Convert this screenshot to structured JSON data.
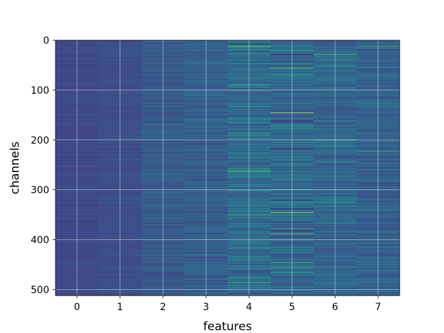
{
  "chart_data": {
    "type": "heatmap",
    "title": "",
    "xlabel": "features",
    "ylabel": "channels",
    "x_categories": [
      "0",
      "1",
      "2",
      "3",
      "4",
      "5",
      "6",
      "7"
    ],
    "y_ticks": [
      0,
      100,
      200,
      300,
      400,
      500
    ],
    "y_range": [
      0,
      512
    ],
    "n_rows": 512,
    "n_cols": 8,
    "colormap": "viridis",
    "grid": true,
    "column_mean_intensity": [
      0.22,
      0.24,
      0.28,
      0.3,
      0.35,
      0.34,
      0.33,
      0.31
    ],
    "column_variability": [
      0.03,
      0.04,
      0.06,
      0.08,
      0.14,
      0.16,
      0.12,
      0.1
    ],
    "highlights": [
      {
        "feature": 4,
        "channel": 12,
        "intensity": 0.8
      },
      {
        "feature": 4,
        "channel": 258,
        "intensity": 0.7
      },
      {
        "feature": 4,
        "channel": 262,
        "intensity": 0.75
      },
      {
        "feature": 4,
        "channel": 475,
        "intensity": 0.6
      },
      {
        "feature": 5,
        "channel": 55,
        "intensity": 0.85
      },
      {
        "feature": 5,
        "channel": 145,
        "intensity": 0.95
      },
      {
        "feature": 5,
        "channel": 345,
        "intensity": 0.9
      },
      {
        "feature": 5,
        "channel": 445,
        "intensity": 0.7
      },
      {
        "feature": 6,
        "channel": 28,
        "intensity": 0.75
      },
      {
        "feature": 6,
        "channel": 200,
        "intensity": 0.7
      },
      {
        "feature": 7,
        "channel": 12,
        "intensity": 0.75
      },
      {
        "feature": 7,
        "channel": 222,
        "intensity": 0.7
      }
    ]
  }
}
